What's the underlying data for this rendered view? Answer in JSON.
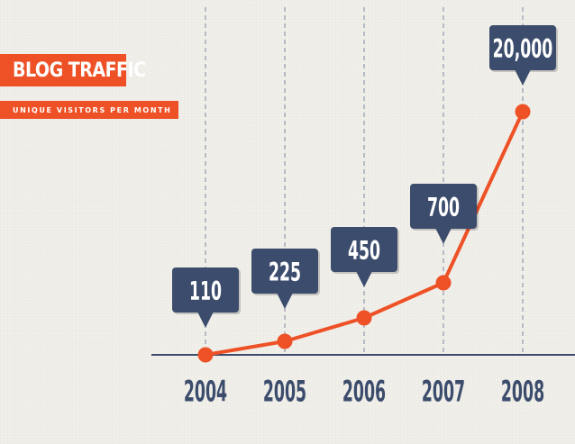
{
  "header": {
    "title": "BLOG TRAFFIC",
    "subtitle": "UNIQUE VISITORS PER MONTH"
  },
  "colors": {
    "accent": "#ee5126",
    "navy": "#3b4c6c",
    "background": "#f1efea"
  },
  "chart_data": {
    "type": "line",
    "title": "BLOG TRAFFIC",
    "subtitle": "UNIQUE VISITORS PER MONTH",
    "xlabel": "",
    "ylabel": "",
    "categories": [
      "2004",
      "2005",
      "2006",
      "2007",
      "2008"
    ],
    "series": [
      {
        "values": [
          110,
          225,
          450,
          700,
          20000
        ],
        "labels": [
          "110",
          "225",
          "450",
          "700",
          "20,000"
        ]
      }
    ],
    "grid": "vertical dashed lines at each category",
    "legend": "none",
    "scale": "non-linear (pictorial)"
  }
}
